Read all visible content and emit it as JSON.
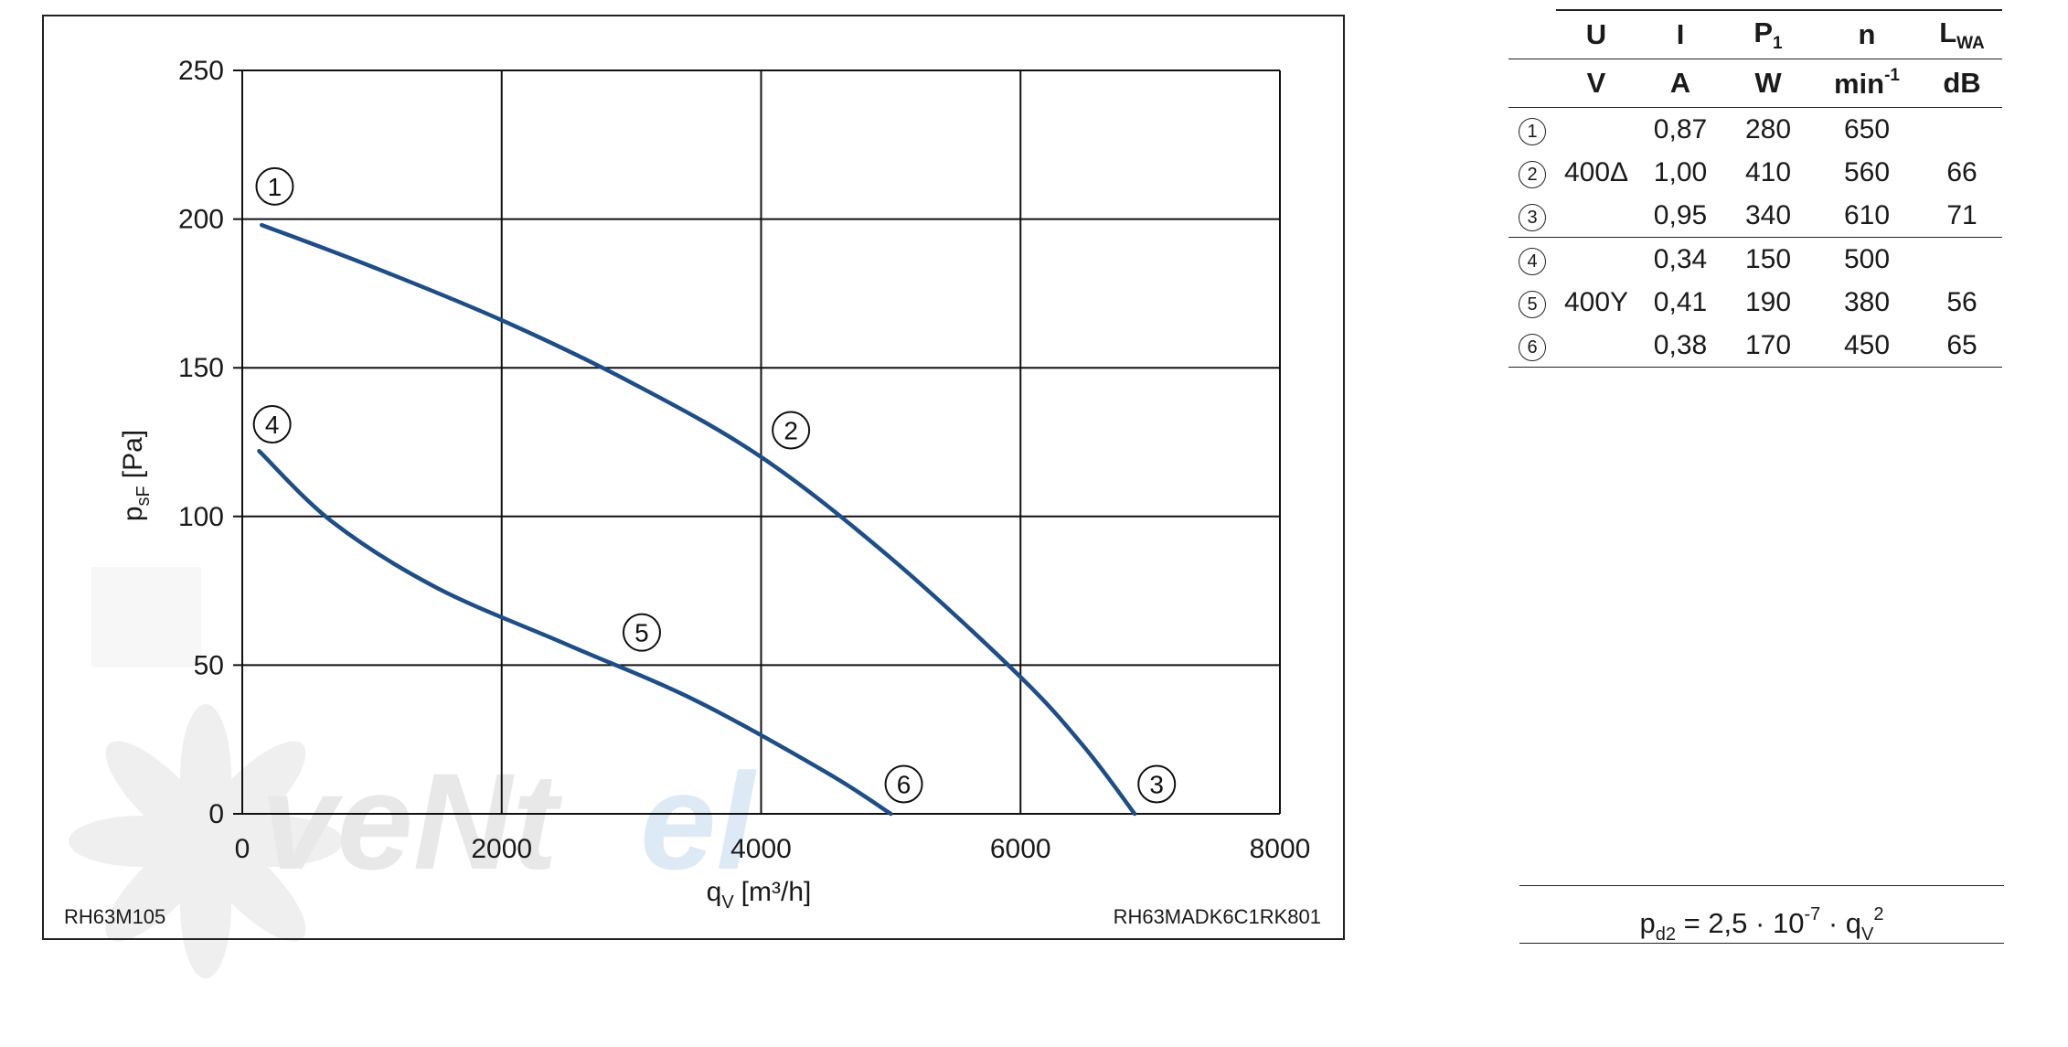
{
  "chart_data": {
    "type": "line",
    "xlabel": "q",
    "xlabel_sub": "V",
    "xlabel_unit": "[m³/h]",
    "ylabel": "p",
    "ylabel_sub": "sF",
    "ylabel_unit": "[Pa]",
    "xlim": [
      0,
      8000
    ],
    "ylim": [
      0,
      250
    ],
    "xticks": [
      "0",
      "2000",
      "4000",
      "6000",
      "8000"
    ],
    "yticks": [
      "0",
      "50",
      "100",
      "150",
      "200",
      "250"
    ],
    "grid": true,
    "series": [
      {
        "name": "1-2-3",
        "color": "#1f4e86",
        "x": [
          150,
          1000,
          2000,
          3000,
          4000,
          5000,
          6000,
          6500,
          6880
        ],
        "y": [
          198,
          184,
          166,
          145,
          120,
          86,
          46,
          22,
          0
        ]
      },
      {
        "name": "4-5-6",
        "color": "#1f4e86",
        "x": [
          130,
          700,
          1500,
          2500,
          3500,
          4500,
          5000
        ],
        "y": [
          122,
          98,
          76,
          57,
          38,
          14,
          0
        ]
      }
    ],
    "annotations": [
      {
        "text": "1",
        "x": 250,
        "y": 211
      },
      {
        "text": "2",
        "x": 4230,
        "y": 129
      },
      {
        "text": "3",
        "x": 7050,
        "y": 10
      },
      {
        "text": "4",
        "x": 230,
        "y": 131
      },
      {
        "text": "5",
        "x": 3080,
        "y": 61
      },
      {
        "text": "6",
        "x": 5100,
        "y": 10
      }
    ],
    "footer_left": "RH63M105",
    "footer_right": "RH63MADK6C1RK801"
  },
  "table": {
    "headers": [
      {
        "main": "U",
        "sub": ""
      },
      {
        "main": "I",
        "sub": ""
      },
      {
        "main": "P",
        "sub": "1"
      },
      {
        "main": "n",
        "sub": ""
      },
      {
        "main": "L",
        "sub": "WA"
      }
    ],
    "units": [
      {
        "main": "V",
        "sup": ""
      },
      {
        "main": "A",
        "sup": ""
      },
      {
        "main": "W",
        "sup": ""
      },
      {
        "main": "min",
        "sup": "-1"
      },
      {
        "main": "dB",
        "sup": ""
      }
    ],
    "rows": [
      {
        "id": "1",
        "U": "",
        "I": "0,87",
        "P": "280",
        "n": "650",
        "L": ""
      },
      {
        "id": "2",
        "U": "400Δ",
        "I": "1,00",
        "P": "410",
        "n": "560",
        "L": "66"
      },
      {
        "id": "3",
        "U": "",
        "I": "0,95",
        "P": "340",
        "n": "610",
        "L": "71"
      },
      {
        "id": "4",
        "U": "",
        "I": "0,34",
        "P": "150",
        "n": "500",
        "L": ""
      },
      {
        "id": "5",
        "U": "400Y",
        "I": "0,41",
        "P": "190",
        "n": "380",
        "L": "56"
      },
      {
        "id": "6",
        "U": "",
        "I": "0,38",
        "P": "170",
        "n": "450",
        "L": "65"
      }
    ]
  },
  "formula": {
    "lhs": "p",
    "lhs_sub": "d2",
    "middle": " = 2,5 · 10",
    "exp": "-7",
    "dot": " · q",
    "q_sub": "V",
    "q_sup": "2"
  },
  "watermark": {
    "text_gray": "veNt",
    "text_blue": "el",
    "logo": "fan-blades-logo"
  }
}
